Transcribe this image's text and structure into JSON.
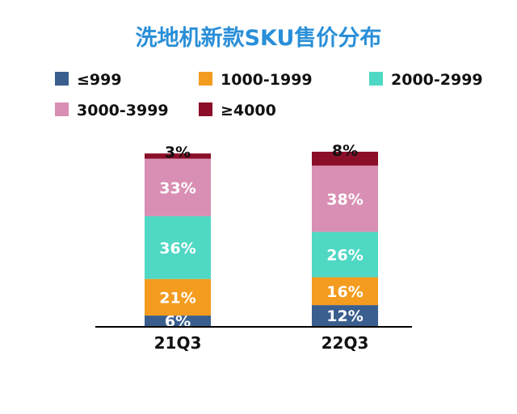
{
  "chart_data": {
    "type": "bar",
    "stacked": true,
    "title": "洗地机新款SKU售价分布",
    "categories": [
      "21Q3",
      "22Q3"
    ],
    "series": [
      {
        "name": "≤999",
        "color": "#3a5f8f",
        "values": [
          6,
          12
        ],
        "labels": [
          "6%",
          "12%"
        ]
      },
      {
        "name": "1000-1999",
        "color": "#f39c1f",
        "values": [
          21,
          16
        ],
        "labels": [
          "21%",
          "16%"
        ]
      },
      {
        "name": "2000-2999",
        "color": "#4fd8c4",
        "values": [
          36,
          26
        ],
        "labels": [
          "36%",
          "26%"
        ]
      },
      {
        "name": "3000-3999",
        "color": "#d98fb3",
        "values": [
          33,
          38
        ],
        "labels": [
          "33%",
          "38%"
        ]
      },
      {
        "name": "≥4000",
        "color": "#8b0f28",
        "values": [
          3,
          8
        ],
        "labels": [
          "3%",
          "8%"
        ]
      }
    ],
    "legend_position": "top",
    "grid": false,
    "ylim": [
      0,
      100
    ]
  }
}
